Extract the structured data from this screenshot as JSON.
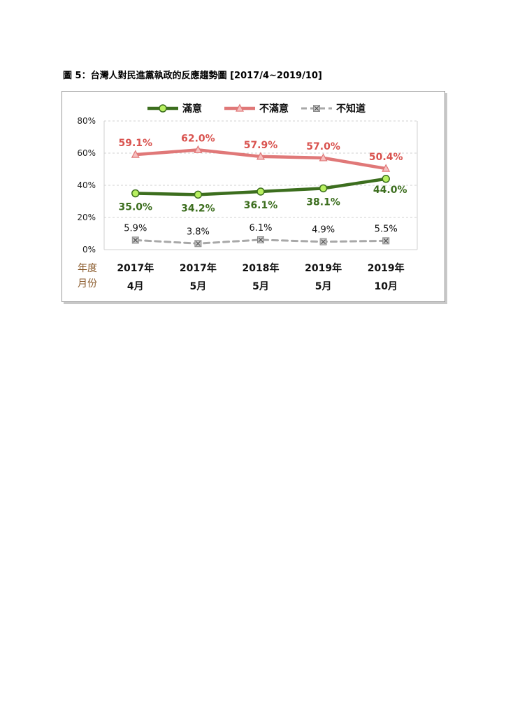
{
  "figure_title": "圖 5：台灣人對民進黨執政的反應趨勢圖  [2017/4~2019/10]",
  "chart_data": {
    "type": "line",
    "x_axis_caption": [
      "年度",
      "月份"
    ],
    "categories": [
      [
        "2017年",
        "4月"
      ],
      [
        "2017年",
        "5月"
      ],
      [
        "2018年",
        "5月"
      ],
      [
        "2019年",
        "5月"
      ],
      [
        "2019年",
        "10月"
      ]
    ],
    "y_ticks": [
      "0%",
      "20%",
      "40%",
      "60%",
      "80%"
    ],
    "ylim": [
      0,
      80
    ],
    "grid": "horizontal dashed",
    "legend_position": "top",
    "series": [
      {
        "name": "滿意",
        "values": [
          35.0,
          34.2,
          36.1,
          38.1,
          44.0
        ],
        "labels": [
          "35.0%",
          "34.2%",
          "36.1%",
          "38.1%",
          "44.0%"
        ],
        "color": "#3c6e1e",
        "marker_fill": "#b8f060",
        "marker": "circle",
        "line_style": "solid"
      },
      {
        "name": "不滿意",
        "values": [
          59.1,
          62.0,
          57.9,
          57.0,
          50.4
        ],
        "labels": [
          "59.1%",
          "62.0%",
          "57.9%",
          "57.0%",
          "50.4%"
        ],
        "color": "#e07878",
        "label_color": "#d9534f",
        "marker": "triangle",
        "line_style": "solid"
      },
      {
        "name": "不知道",
        "values": [
          5.9,
          3.8,
          6.1,
          4.9,
          5.5
        ],
        "labels": [
          "5.9%",
          "3.8%",
          "6.1%",
          "4.9%",
          "5.5%"
        ],
        "color": "#a8a8a8",
        "label_color": "#111111",
        "marker": "x-square",
        "line_style": "dashed"
      }
    ]
  }
}
